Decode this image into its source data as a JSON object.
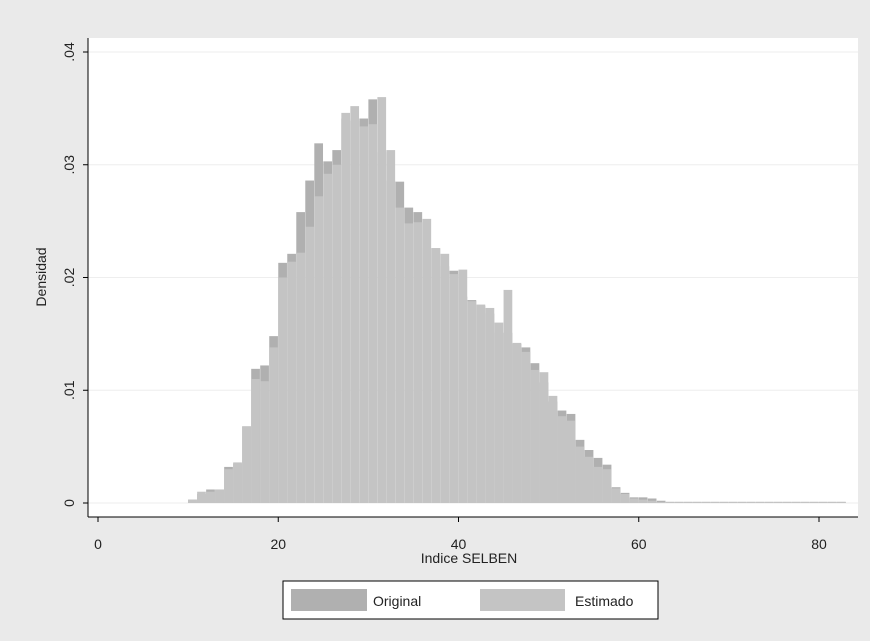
{
  "chart_data": {
    "type": "bar",
    "subtype": "overlaid-histogram",
    "xlabel": "Indice SELBEN",
    "ylabel": "Densidad",
    "xlim": [
      0,
      83
    ],
    "ylim": [
      0,
      0.04
    ],
    "x_ticks": [
      0,
      20,
      40,
      60,
      80
    ],
    "y_ticks": [
      0,
      0.01,
      0.02,
      0.03,
      0.04
    ],
    "x_tick_labels": [
      "0",
      "20",
      "40",
      "60",
      "80"
    ],
    "y_tick_labels": [
      "0",
      ".01",
      ".02",
      ".03",
      ".04"
    ],
    "grid": true,
    "legend_position": "bottom",
    "bin_width": 1,
    "bin_starts": [
      10,
      11,
      12,
      13,
      14,
      15,
      16,
      17,
      18,
      19,
      20,
      21,
      22,
      23,
      24,
      25,
      26,
      27,
      28,
      29,
      30,
      31,
      32,
      33,
      34,
      35,
      36,
      37,
      38,
      39,
      40,
      41,
      42,
      43,
      44,
      45,
      46,
      47,
      48,
      49,
      50,
      51,
      52,
      53,
      54,
      55,
      56,
      57,
      58,
      59,
      60,
      61,
      62,
      63,
      64,
      65,
      66,
      67,
      68,
      69,
      70,
      71,
      72,
      73,
      74,
      75,
      76,
      77,
      78,
      79,
      80,
      81,
      82
    ],
    "series": [
      {
        "name": "Original",
        "color": "#b0b0b0",
        "values": [
          0.0003,
          0.0008,
          0.0012,
          0.0012,
          0.0032,
          0.0035,
          0.0068,
          0.0119,
          0.0122,
          0.0148,
          0.0213,
          0.0221,
          0.0258,
          0.0286,
          0.0319,
          0.0303,
          0.0313,
          0.0341,
          0.0339,
          0.0341,
          0.0358,
          0.0311,
          0.0286,
          0.0285,
          0.0262,
          0.0258,
          0.0226,
          0.0226,
          0.021,
          0.0206,
          0.0183,
          0.018,
          0.0175,
          0.0168,
          0.0151,
          0.0151,
          0.0141,
          0.0138,
          0.0124,
          0.0107,
          0.009,
          0.0082,
          0.0079,
          0.0056,
          0.0047,
          0.004,
          0.0034,
          0.0014,
          0.0009,
          0.0005,
          0.0005,
          0.0004,
          0.0002,
          0.0001,
          0.0001,
          0.0001,
          0.0001,
          0.0001,
          0.0001,
          0.0001,
          0.0001,
          0.0001,
          0.0001,
          0.0001,
          0.0001,
          0.0001,
          0.0001,
          0.0001,
          0.0001,
          0.0001,
          0.0001,
          0.0001,
          0.0001
        ]
      },
      {
        "name": "Estimado",
        "color": "#c4c4c4",
        "values": [
          0.0003,
          0.001,
          0.001,
          0.0012,
          0.003,
          0.0036,
          0.0068,
          0.011,
          0.0108,
          0.0138,
          0.02,
          0.0214,
          0.0222,
          0.0245,
          0.0272,
          0.0292,
          0.03,
          0.0346,
          0.0352,
          0.0334,
          0.0336,
          0.036,
          0.0313,
          0.0262,
          0.0248,
          0.0249,
          0.0252,
          0.0226,
          0.0221,
          0.0203,
          0.0207,
          0.0179,
          0.0176,
          0.0173,
          0.016,
          0.0189,
          0.0142,
          0.0134,
          0.0118,
          0.0116,
          0.0095,
          0.0077,
          0.0073,
          0.005,
          0.0041,
          0.0032,
          0.003,
          0.0013,
          0.0008,
          0.0004,
          0.0003,
          0.0002,
          0.0001,
          0.0001,
          0.0001,
          0.0001,
          0.0001,
          0.0001,
          0.0001,
          0.0001,
          0.0001,
          0.0001,
          0.0001,
          0.0001,
          0.0001,
          0.0001,
          0.0001,
          0.0001,
          0.0001,
          0.0001,
          0.0001,
          0.0001,
          0.0001
        ]
      }
    ],
    "legend": [
      {
        "label": "Original",
        "color": "#b0b0b0"
      },
      {
        "label": "Estimado",
        "color": "#c4c4c4"
      }
    ]
  }
}
